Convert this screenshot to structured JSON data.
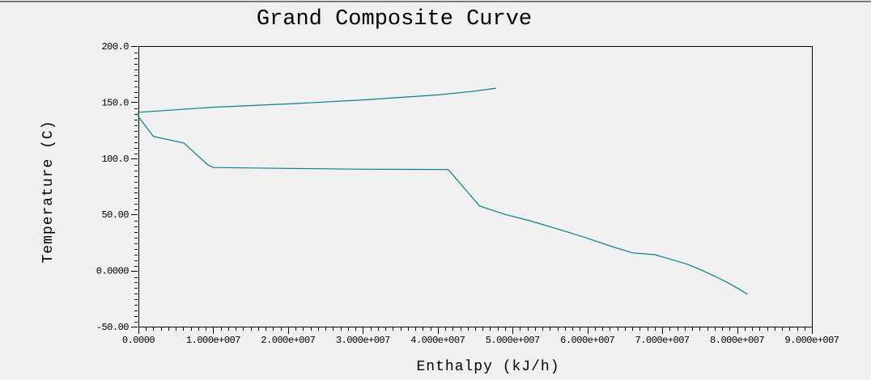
{
  "window": {
    "background_color": "#f0f0f0",
    "top_edge_dark": "#7c7c7c",
    "top_edge_light": "#fafafa"
  },
  "chart_data": {
    "type": "line",
    "title": "Grand Composite Curve",
    "xlabel": "Enthalpy (kJ/h)",
    "ylabel": "Temperature (C)",
    "xlim": [
      0,
      90000000
    ],
    "ylim": [
      -50,
      200
    ],
    "x_major_step": 10000000,
    "x_minor_step": 1000000,
    "y_major_step": 50,
    "y_minor_step": 5,
    "grid": false,
    "legend_position": "none",
    "line_color": "#0b7d86",
    "axis_color": "#000000",
    "x_tick_values": [
      0,
      10000000,
      20000000,
      30000000,
      40000000,
      50000000,
      60000000,
      70000000,
      80000000,
      90000000
    ],
    "x_tick_labels": [
      "0.0000",
      "1.000e+007",
      "2.000e+007",
      "3.000e+007",
      "4.000e+007",
      "5.000e+007",
      "6.000e+007",
      "7.000e+007",
      "8.000e+007",
      "9.000e+007"
    ],
    "y_tick_values": [
      200,
      150,
      100,
      50,
      0,
      -50
    ],
    "y_tick_labels": [
      "200.0",
      "150.0",
      "100.0",
      "50.00",
      "0.0000",
      "-50.00"
    ],
    "series": [
      {
        "name": "Grand Composite Curve",
        "points": [
          [
            47800000,
            162.5
          ],
          [
            44500000,
            159.5
          ],
          [
            40000000,
            156.5
          ],
          [
            30000000,
            152.0
          ],
          [
            20000000,
            148.5
          ],
          [
            10000000,
            145.5
          ],
          [
            0,
            141.0
          ],
          [
            0,
            137.0
          ],
          [
            2000000,
            119.5
          ],
          [
            6100000,
            113.5
          ],
          [
            9300000,
            94.0
          ],
          [
            10000000,
            91.8
          ],
          [
            20000000,
            91.0
          ],
          [
            30000000,
            90.3
          ],
          [
            41400000,
            90.0
          ],
          [
            45600000,
            57.5
          ],
          [
            49000000,
            50.0
          ],
          [
            52500000,
            44.0
          ],
          [
            56000000,
            37.0
          ],
          [
            59600000,
            29.7
          ],
          [
            63300000,
            21.3
          ],
          [
            66000000,
            15.8
          ],
          [
            69000000,
            14.1
          ],
          [
            70000000,
            12.2
          ],
          [
            71500000,
            9.3
          ],
          [
            73300000,
            5.7
          ],
          [
            75100000,
            0.9
          ],
          [
            76800000,
            -4.4
          ],
          [
            78700000,
            -10.6
          ],
          [
            80100000,
            -15.9
          ],
          [
            81400000,
            -21.2
          ]
        ]
      }
    ]
  }
}
